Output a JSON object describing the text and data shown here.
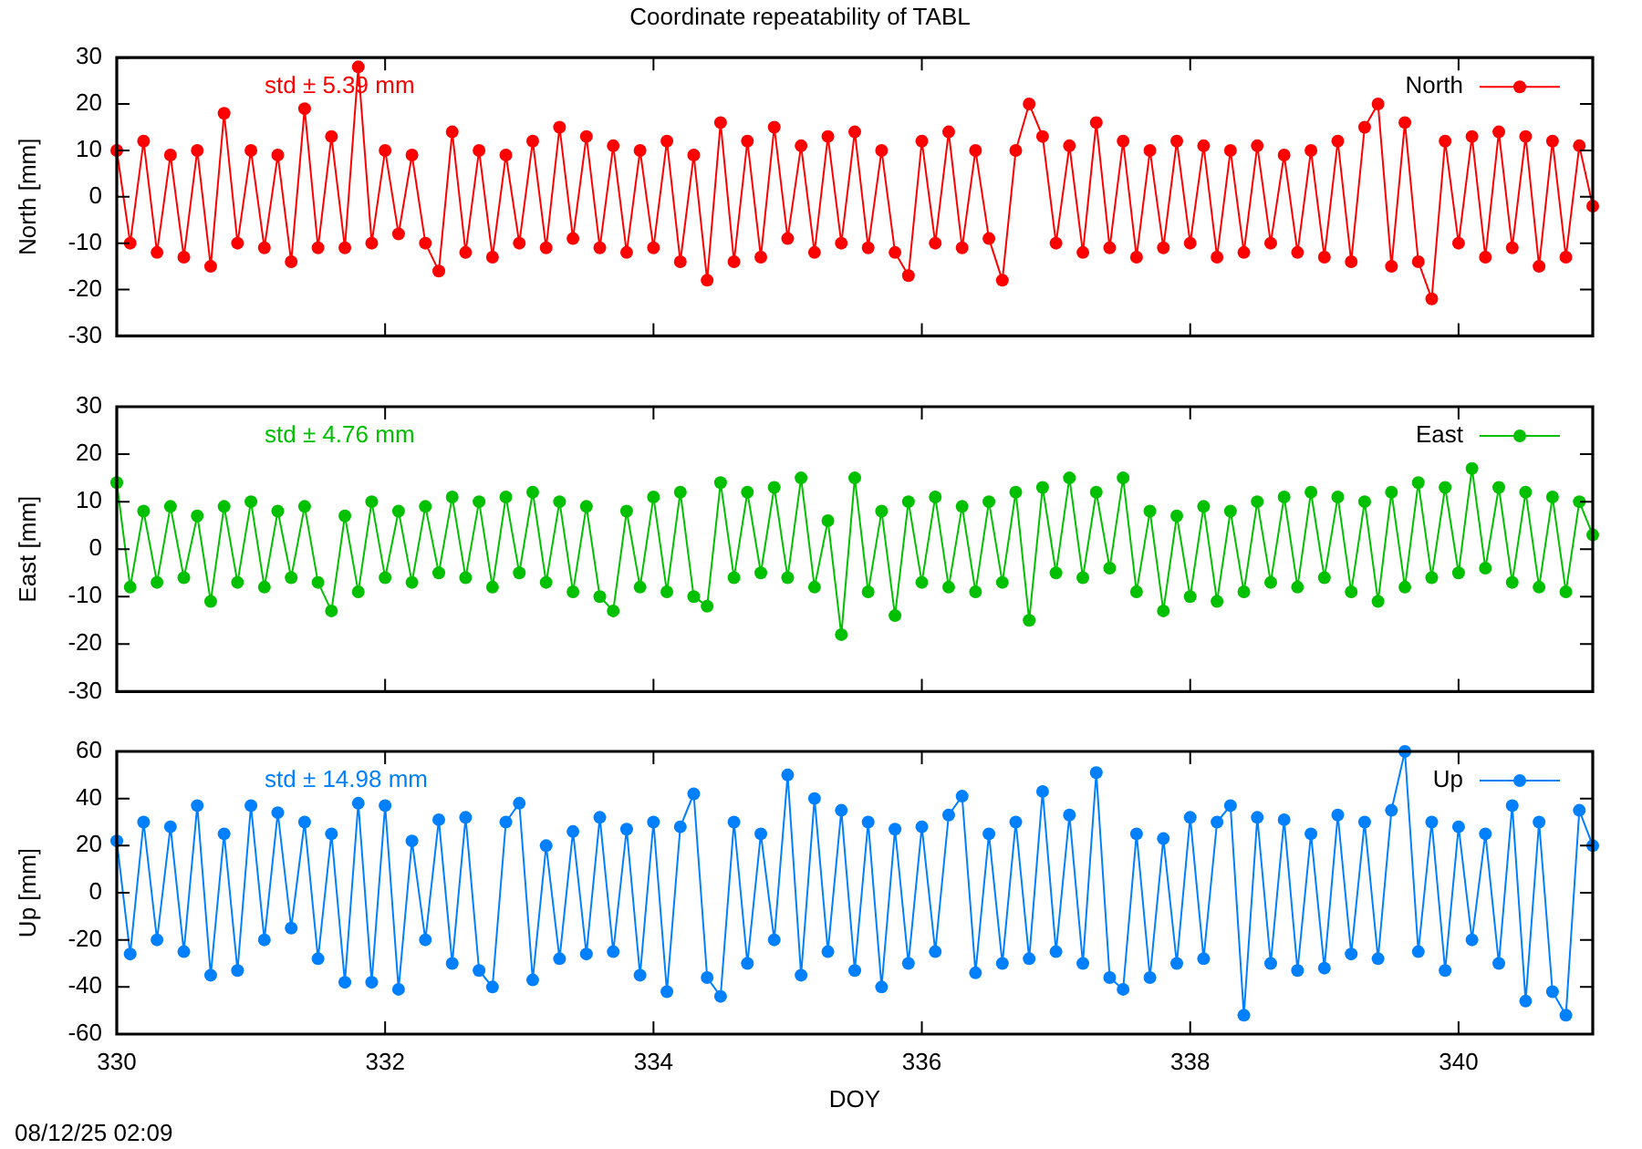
{
  "chart_data": [
    {
      "type": "line",
      "title": "Coordinate repeatability of TABL",
      "ylabel": "North [mm]",
      "annotations": [
        "std ± 5.39 mm"
      ],
      "legend": "top right",
      "marker": "circle",
      "tick_labels": "y",
      "xlim": [
        330,
        341
      ],
      "xticks": [
        330,
        332,
        334,
        336,
        338,
        340
      ],
      "ylim": [
        -30,
        30
      ],
      "yticks": [
        -30,
        -20,
        -10,
        0,
        10,
        20,
        30
      ],
      "x": [
        330,
        330.1,
        330.2,
        330.3,
        330.4,
        330.5,
        330.6,
        330.7,
        330.8,
        330.9,
        331,
        331.1,
        331.2,
        331.3,
        331.4,
        331.5,
        331.6,
        331.7,
        331.8,
        331.9,
        332,
        332.1,
        332.2,
        332.3,
        332.4,
        332.5,
        332.6,
        332.7,
        332.8,
        332.9,
        333,
        333.1,
        333.2,
        333.3,
        333.4,
        333.5,
        333.6,
        333.7,
        333.8,
        333.9,
        334,
        334.1,
        334.2,
        334.3,
        334.4,
        334.5,
        334.6,
        334.7,
        334.8,
        334.9,
        335,
        335.1,
        335.2,
        335.3,
        335.4,
        335.5,
        335.6,
        335.7,
        335.8,
        335.9,
        336,
        336.1,
        336.2,
        336.3,
        336.4,
        336.5,
        336.6,
        336.7,
        336.8,
        336.9,
        337,
        337.1,
        337.2,
        337.3,
        337.4,
        337.5,
        337.6,
        337.7,
        337.8,
        337.9,
        338,
        338.1,
        338.2,
        338.3,
        338.4,
        338.5,
        338.6,
        338.7,
        338.8,
        338.9,
        339,
        339.1,
        339.2,
        339.3,
        339.4,
        339.5,
        339.6,
        339.7,
        339.8,
        339.9,
        340,
        340.1,
        340.2,
        340.3,
        340.4,
        340.5,
        340.6,
        340.7,
        340.8,
        340.9,
        341
      ],
      "series": [
        {
          "name": "North",
          "color": "#ff0000",
          "values": [
            10,
            -10,
            12,
            -12,
            9,
            -13,
            10,
            -15,
            18,
            -10,
            10,
            -11,
            9,
            -14,
            19,
            -11,
            13,
            -11,
            28,
            -10,
            10,
            -8,
            9,
            -10,
            -16,
            14,
            -12,
            10,
            -13,
            9,
            -10,
            12,
            -11,
            15,
            -9,
            13,
            -11,
            11,
            -12,
            10,
            -11,
            12,
            -14,
            9,
            -18,
            16,
            -14,
            12,
            -13,
            15,
            -9,
            11,
            -12,
            13,
            -10,
            14,
            -11,
            10,
            -12,
            -17,
            12,
            -10,
            14,
            -11,
            10,
            -9,
            -18,
            10,
            20,
            13,
            -10,
            11,
            -12,
            16,
            -11,
            12,
            -13,
            10,
            -11,
            12,
            -10,
            11,
            -13,
            10,
            -12,
            11,
            -10,
            9,
            -12,
            10,
            -13,
            12,
            -14,
            15,
            20,
            -15,
            16,
            -14,
            -22,
            12,
            -10,
            13,
            -13,
            14,
            -11,
            13,
            -15,
            12,
            -13,
            11,
            -2
          ]
        }
      ]
    },
    {
      "type": "line",
      "ylabel": "East [mm]",
      "annotations": [
        "std ± 4.76 mm"
      ],
      "legend": "top right",
      "marker": "circle",
      "tick_labels": "y",
      "xlim": [
        330,
        341
      ],
      "xticks": [
        330,
        332,
        334,
        336,
        338,
        340
      ],
      "ylim": [
        -30,
        30
      ],
      "yticks": [
        -30,
        -20,
        -10,
        0,
        10,
        20,
        30
      ],
      "x": [
        330,
        330.1,
        330.2,
        330.3,
        330.4,
        330.5,
        330.6,
        330.7,
        330.8,
        330.9,
        331,
        331.1,
        331.2,
        331.3,
        331.4,
        331.5,
        331.6,
        331.7,
        331.8,
        331.9,
        332,
        332.1,
        332.2,
        332.3,
        332.4,
        332.5,
        332.6,
        332.7,
        332.8,
        332.9,
        333,
        333.1,
        333.2,
        333.3,
        333.4,
        333.5,
        333.6,
        333.7,
        333.8,
        333.9,
        334,
        334.1,
        334.2,
        334.3,
        334.4,
        334.5,
        334.6,
        334.7,
        334.8,
        334.9,
        335,
        335.1,
        335.2,
        335.3,
        335.4,
        335.5,
        335.6,
        335.7,
        335.8,
        335.9,
        336,
        336.1,
        336.2,
        336.3,
        336.4,
        336.5,
        336.6,
        336.7,
        336.8,
        336.9,
        337,
        337.1,
        337.2,
        337.3,
        337.4,
        337.5,
        337.6,
        337.7,
        337.8,
        337.9,
        338,
        338.1,
        338.2,
        338.3,
        338.4,
        338.5,
        338.6,
        338.7,
        338.8,
        338.9,
        339,
        339.1,
        339.2,
        339.3,
        339.4,
        339.5,
        339.6,
        339.7,
        339.8,
        339.9,
        340,
        340.1,
        340.2,
        340.3,
        340.4,
        340.5,
        340.6,
        340.7,
        340.8,
        340.9,
        341
      ],
      "series": [
        {
          "name": "East",
          "color": "#00c000",
          "values": [
            14,
            -8,
            8,
            -7,
            9,
            -6,
            7,
            -11,
            9,
            -7,
            10,
            -8,
            8,
            -6,
            9,
            -7,
            -13,
            7,
            -9,
            10,
            -6,
            8,
            -7,
            9,
            -5,
            11,
            -6,
            10,
            -8,
            11,
            -5,
            12,
            -7,
            10,
            -9,
            9,
            -10,
            -13,
            8,
            -8,
            11,
            -9,
            12,
            -10,
            -12,
            14,
            -6,
            12,
            -5,
            13,
            -6,
            15,
            -8,
            6,
            -18,
            15,
            -9,
            8,
            -14,
            10,
            -7,
            11,
            -8,
            9,
            -9,
            10,
            -7,
            12,
            -15,
            13,
            -5,
            15,
            -6,
            12,
            -4,
            15,
            -9,
            8,
            -13,
            7,
            -10,
            9,
            -11,
            8,
            -9,
            10,
            -7,
            11,
            -8,
            12,
            -6,
            11,
            -9,
            10,
            -11,
            12,
            -8,
            14,
            -6,
            13,
            -5,
            17,
            -4,
            13,
            -7,
            12,
            -8,
            11,
            -9,
            10,
            3
          ]
        }
      ]
    },
    {
      "type": "line",
      "xlabel": "DOY",
      "ylabel": "Up [mm]",
      "annotations": [
        "std ± 14.98 mm",
        "08/12/25 02:09"
      ],
      "legend": "top right",
      "marker": "circle",
      "xlim": [
        330,
        341
      ],
      "xticks": [
        330,
        332,
        334,
        336,
        338,
        340
      ],
      "ylim": [
        -60,
        60
      ],
      "yticks": [
        -60,
        -40,
        -20,
        0,
        20,
        40,
        60
      ],
      "x": [
        330,
        330.1,
        330.2,
        330.3,
        330.4,
        330.5,
        330.6,
        330.7,
        330.8,
        330.9,
        331,
        331.1,
        331.2,
        331.3,
        331.4,
        331.5,
        331.6,
        331.7,
        331.8,
        331.9,
        332,
        332.1,
        332.2,
        332.3,
        332.4,
        332.5,
        332.6,
        332.7,
        332.8,
        332.9,
        333,
        333.1,
        333.2,
        333.3,
        333.4,
        333.5,
        333.6,
        333.7,
        333.8,
        333.9,
        334,
        334.1,
        334.2,
        334.3,
        334.4,
        334.5,
        334.6,
        334.7,
        334.8,
        334.9,
        335,
        335.1,
        335.2,
        335.3,
        335.4,
        335.5,
        335.6,
        335.7,
        335.8,
        335.9,
        336,
        336.1,
        336.2,
        336.3,
        336.4,
        336.5,
        336.6,
        336.7,
        336.8,
        336.9,
        337,
        337.1,
        337.2,
        337.3,
        337.4,
        337.5,
        337.6,
        337.7,
        337.8,
        337.9,
        338,
        338.1,
        338.2,
        338.3,
        338.4,
        338.5,
        338.6,
        338.7,
        338.8,
        338.9,
        339,
        339.1,
        339.2,
        339.3,
        339.4,
        339.5,
        339.6,
        339.7,
        339.8,
        339.9,
        340,
        340.1,
        340.2,
        340.3,
        340.4,
        340.5,
        340.6,
        340.7,
        340.8,
        340.9,
        341
      ],
      "series": [
        {
          "name": "Up",
          "color": "#0080ff",
          "values": [
            22,
            -26,
            30,
            -20,
            28,
            -25,
            37,
            -35,
            25,
            -33,
            37,
            -20,
            34,
            -15,
            30,
            -28,
            25,
            -38,
            38,
            -38,
            37,
            -41,
            22,
            -20,
            31,
            -30,
            32,
            -33,
            -40,
            30,
            38,
            -37,
            20,
            -28,
            26,
            -26,
            32,
            -25,
            27,
            -35,
            30,
            -42,
            28,
            42,
            -36,
            -44,
            30,
            -30,
            25,
            -20,
            50,
            -35,
            40,
            -25,
            35,
            -33,
            30,
            -40,
            27,
            -30,
            28,
            -25,
            33,
            41,
            -34,
            25,
            -30,
            30,
            -28,
            43,
            -25,
            33,
            -30,
            51,
            -36,
            -41,
            25,
            -36,
            23,
            -30,
            32,
            -28,
            30,
            37,
            -52,
            32,
            -30,
            31,
            -33,
            25,
            -32,
            33,
            -26,
            30,
            -28,
            35,
            60,
            -25,
            30,
            -33,
            28,
            -20,
            25,
            -30,
            37,
            -46,
            30,
            -42,
            -52,
            35,
            20
          ]
        }
      ]
    }
  ]
}
